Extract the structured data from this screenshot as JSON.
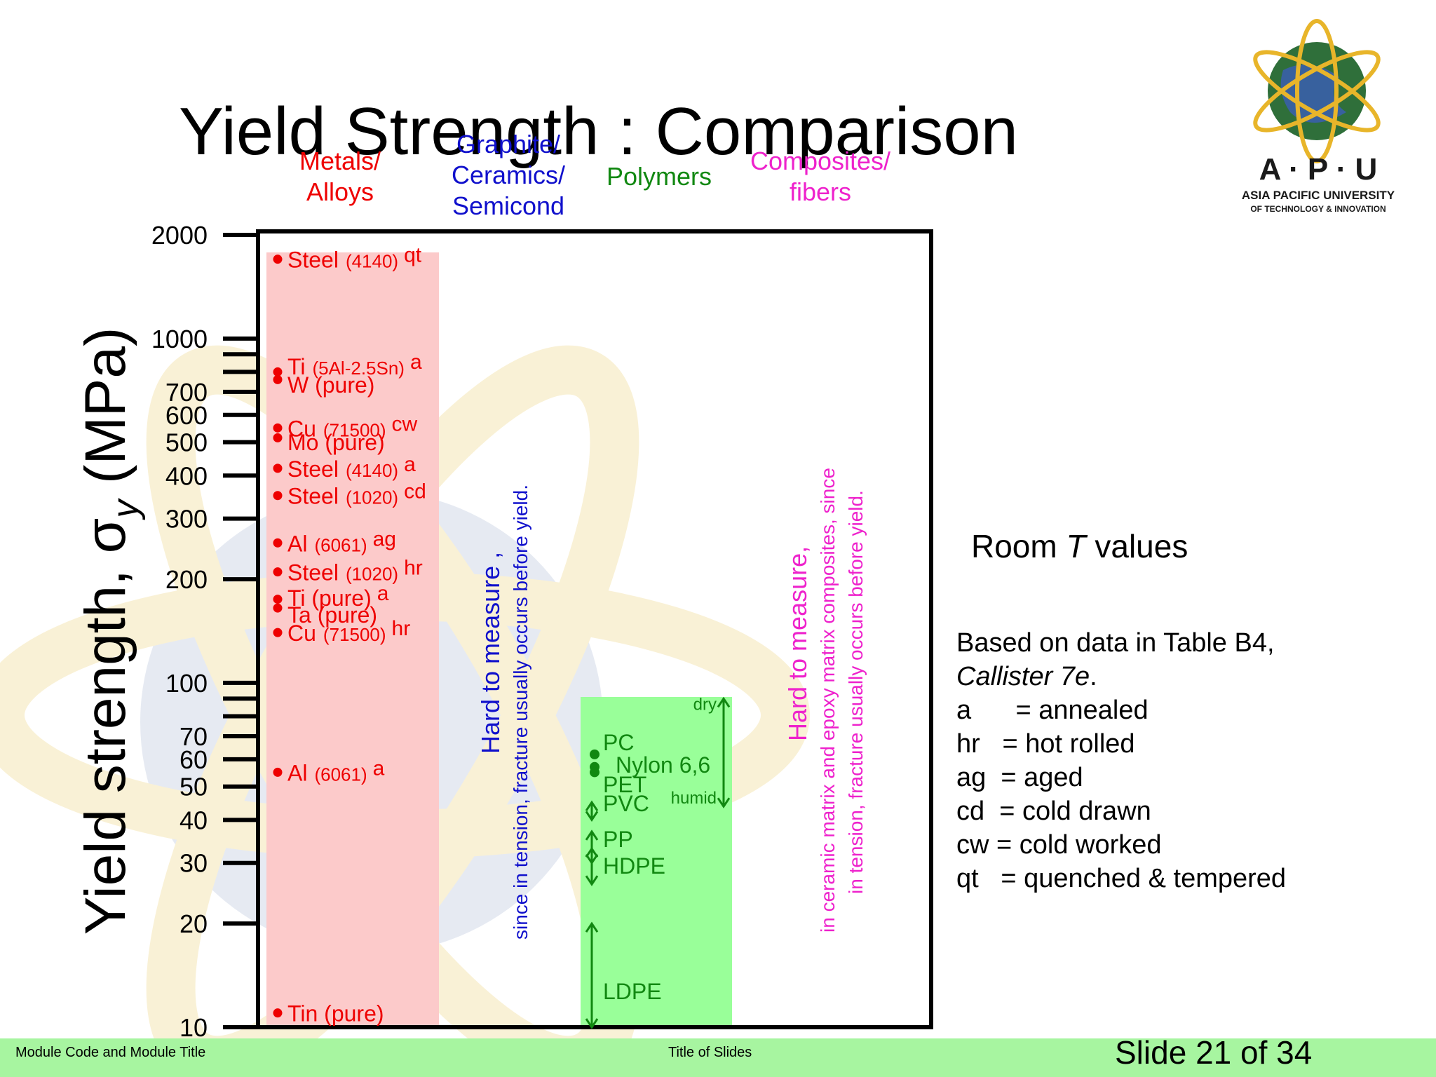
{
  "slide": {
    "title": "Yield Strength : Comparison",
    "footer_left": "Module Code and Module Title",
    "footer_center": "Title of Slides",
    "slide_number": "Slide 21 of 34"
  },
  "logo": {
    "letters": "A · P · U",
    "line1": "ASIA PACIFIC UNIVERSITY",
    "line2": "OF TECHNOLOGY & INNOVATION"
  },
  "categories": {
    "metals": "Metals/\nAlloys",
    "ceramics": "Graphite/\nCeramics/\nSemicond",
    "polymers": "Polymers",
    "composites": "Composites/\nfibers"
  },
  "notes": {
    "ceramics_main": "Hard to measure",
    "ceramics_sub": "since in tension, fracture usually occurs before yield.",
    "composites_main": "Hard to measure,",
    "composites_sub1": "in ceramic matrix and epoxy matrix composites, since",
    "composites_sub2": "in tension, fracture usually occurs before yield.",
    "room_t_prefix": "Room ",
    "room_t_italic": "T",
    "room_t_suffix": " values"
  },
  "legend": {
    "source_line1": "Based on data in Table B4,",
    "source_line2": "Callister 7e",
    "entries": [
      "a      = annealed",
      "hr   = hot rolled",
      "ag  = aged",
      "cd  = cold drawn",
      "cw = cold worked",
      "qt   = quenched & tempered"
    ]
  },
  "colors": {
    "metals": "#ee0000",
    "metals_bg": "#fccaca",
    "ceramics": "#1010cc",
    "polymers": "#118811",
    "polymers_bg": "#99ff99",
    "composites": "#ee22cc",
    "footer": "#a7f5a0"
  },
  "chart_data": {
    "type": "scatter",
    "title": "Yield Strength : Comparison",
    "ylabel": "Yield strength, σy (MPa)",
    "yscale": "log",
    "ylim": [
      10,
      2000
    ],
    "yticks": [
      10,
      20,
      30,
      40,
      50,
      60,
      70,
      100,
      200,
      300,
      400,
      500,
      600,
      700,
      1000,
      2000
    ],
    "metals": [
      {
        "name": "Steel",
        "spec": "(4140)",
        "cond": "qt",
        "value": 1700
      },
      {
        "name": "Ti",
        "spec": "(5Al-2.5Sn)",
        "cond": "a",
        "value": 800
      },
      {
        "name": "W (pure)",
        "spec": "",
        "cond": "",
        "value": 760
      },
      {
        "name": "Cu",
        "spec": "(71500)",
        "cond": "cw",
        "value": 550
      },
      {
        "name": "Mo (pure)",
        "spec": "",
        "cond": "",
        "value": 515
      },
      {
        "name": "Steel",
        "spec": "(4140)",
        "cond": "a",
        "value": 420
      },
      {
        "name": "Steel",
        "spec": "(1020)",
        "cond": "cd",
        "value": 350
      },
      {
        "name": "Al",
        "spec": "(6061)",
        "cond": "ag",
        "value": 255
      },
      {
        "name": "Steel",
        "spec": "(1020)",
        "cond": "hr",
        "value": 210
      },
      {
        "name": "Ti (pure)",
        "spec": "",
        "cond": "a",
        "value": 175
      },
      {
        "name": "Ta (pure)",
        "spec": "",
        "cond": "",
        "value": 165
      },
      {
        "name": "Cu",
        "spec": "(71500)",
        "cond": "hr",
        "value": 140
      },
      {
        "name": "Al",
        "spec": "(6061)",
        "cond": "a",
        "value": 55
      },
      {
        "name": "Tin (pure)",
        "spec": "",
        "cond": "",
        "value": 11
      }
    ],
    "polymers": [
      {
        "name": "PC",
        "value": 62
      },
      {
        "name": "Nylon 6,6",
        "value": 57
      },
      {
        "name": "PET",
        "value": 55
      },
      {
        "name": "PVC",
        "range": [
          40,
          45
        ]
      },
      {
        "name": "PP",
        "range": [
          30,
          37
        ]
      },
      {
        "name": "HDPE",
        "range": [
          26,
          33
        ]
      },
      {
        "name": "LDPE",
        "range": [
          10,
          20
        ]
      }
    ],
    "nylon_range": {
      "dry": 90,
      "humid": 45,
      "labels": [
        "dry",
        "humid"
      ]
    }
  }
}
